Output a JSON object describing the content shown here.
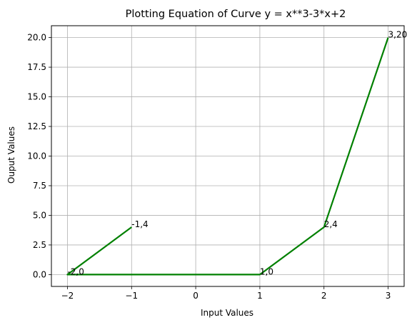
{
  "chart_data": {
    "type": "line",
    "title": "Plotting Equation of Curve y = x**3-3*x+2",
    "xlabel": "Input Values",
    "ylabel": "Ouput Values",
    "xlim": [
      -2.25,
      3.25
    ],
    "ylim": [
      -1.0,
      21.0
    ],
    "xticks": [
      -2,
      -1,
      0,
      1,
      2,
      3
    ],
    "xtick_labels": [
      "−2",
      "−1",
      "0",
      "1",
      "2",
      "3"
    ],
    "yticks": [
      0.0,
      2.5,
      5.0,
      7.5,
      10.0,
      12.5,
      15.0,
      17.5,
      20.0
    ],
    "ytick_labels": [
      "0.0",
      "2.5",
      "5.0",
      "7.5",
      "10.0",
      "12.5",
      "15.0",
      "17.5",
      "20.0"
    ],
    "grid": true,
    "series": [
      {
        "color": "#008000",
        "x": [
          -1,
          -2,
          1,
          2,
          3
        ],
        "y": [
          4,
          0,
          0,
          4,
          20
        ]
      }
    ],
    "annotations": [
      {
        "text": "-1,4",
        "x": -1,
        "y": 4
      },
      {
        "text": "-2,0",
        "x": -2,
        "y": 0
      },
      {
        "text": "1,0",
        "x": 1,
        "y": 0
      },
      {
        "text": "2,4",
        "x": 2,
        "y": 4
      },
      {
        "text": "3,20",
        "x": 3,
        "y": 20
      }
    ]
  }
}
